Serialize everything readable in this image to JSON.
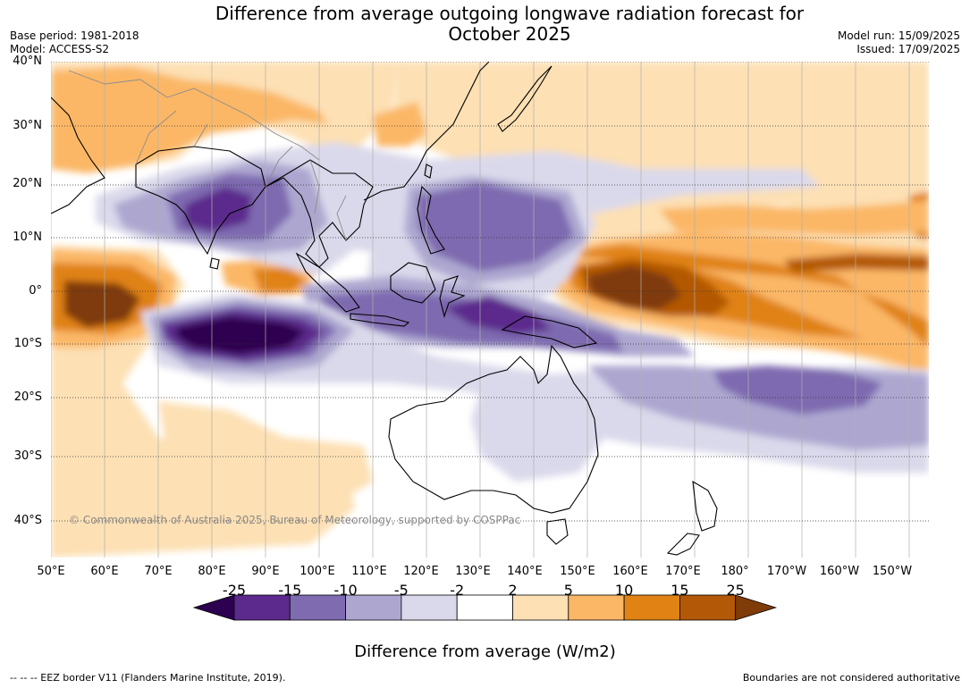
{
  "title_line1": "Difference from average outgoing longwave radiation forecast for",
  "title_line2": "October 2025",
  "base_period": "Base period: 1981-2018",
  "model": "Model: ACCESS-S2",
  "model_run": "Model run: 15/09/2025",
  "issued": "Issued: 17/09/2025",
  "copyright": "© Commonwealth of Australia 2025, Bureau of Meteorology, supported by COSPPac",
  "footer_left": "--  --  -- EEZ border V11 (Flanders Marine Institute, 2019).",
  "footer_right": "Boundaries are not considered authoritative",
  "lat_labels": [
    "40°N",
    "30°N",
    "20°N",
    "10°N",
    "0°",
    "10°S",
    "20°S",
    "30°S",
    "40°S"
  ],
  "lon_labels": [
    "50°E",
    "60°E",
    "70°E",
    "80°E",
    "90°E",
    "100°E",
    "110°E",
    "120°E",
    "130°E",
    "140°E",
    "150°E",
    "160°E",
    "170°E",
    "180°",
    "170°W",
    "160°W",
    "150°W"
  ],
  "colorbar": {
    "title": "Difference from average (W/m2)",
    "ticks": [
      "-25",
      "-15",
      "-10",
      "-5",
      "-2",
      "2",
      "5",
      "10",
      "15",
      "25"
    ],
    "colors": [
      "#2d0050",
      "#5b2a8c",
      "#7e6bb0",
      "#ada7d0",
      "#dad9eb",
      "#ffffff",
      "#fde0b4",
      "#fbb766",
      "#e08214",
      "#b35806",
      "#7f3b08"
    ]
  },
  "map_colors": {
    "ocean_neutral": "#ffffff",
    "coastline": "#000000",
    "borders": "#8c8c8c",
    "gridlines": "#b0b0b0"
  }
}
